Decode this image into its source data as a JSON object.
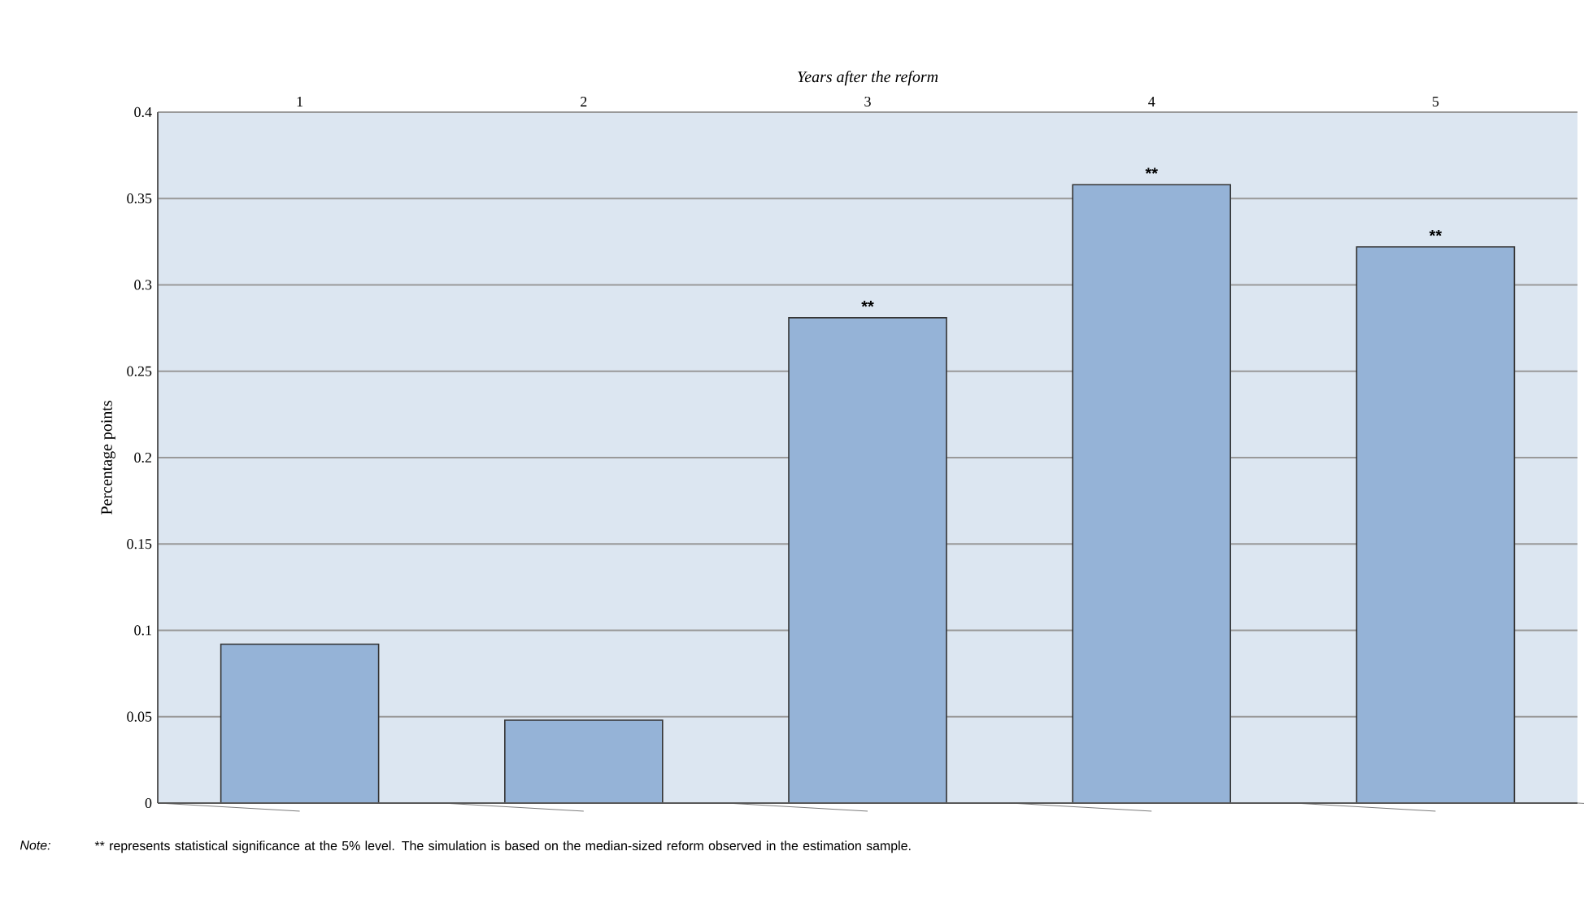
{
  "chart_data": {
    "type": "bar",
    "xlabel": "Years after the reform",
    "ylabel": "Percentage points",
    "categories": [
      "1",
      "2",
      "3",
      "4",
      "5"
    ],
    "values": [
      0.092,
      0.048,
      0.281,
      0.358,
      0.322
    ],
    "color": "#95b3d7",
    "ylim": [
      0,
      0.4
    ],
    "yticks": [
      0,
      0.05,
      0.1,
      0.15,
      0.2,
      0.25,
      0.3,
      0.35,
      0.4
    ],
    "grid": "y",
    "annotations": [
      {
        "text": "**",
        "x": "3",
        "y": 0.281
      },
      {
        "text": "**",
        "x": "4",
        "y": 0.358
      },
      {
        "text": "**",
        "x": "5",
        "y": 0.322
      },
      "Note:",
      "** represents statistical significance at the 5% level. The simulation is based on the median-sized reform observed in the estimation sample."
    ]
  }
}
